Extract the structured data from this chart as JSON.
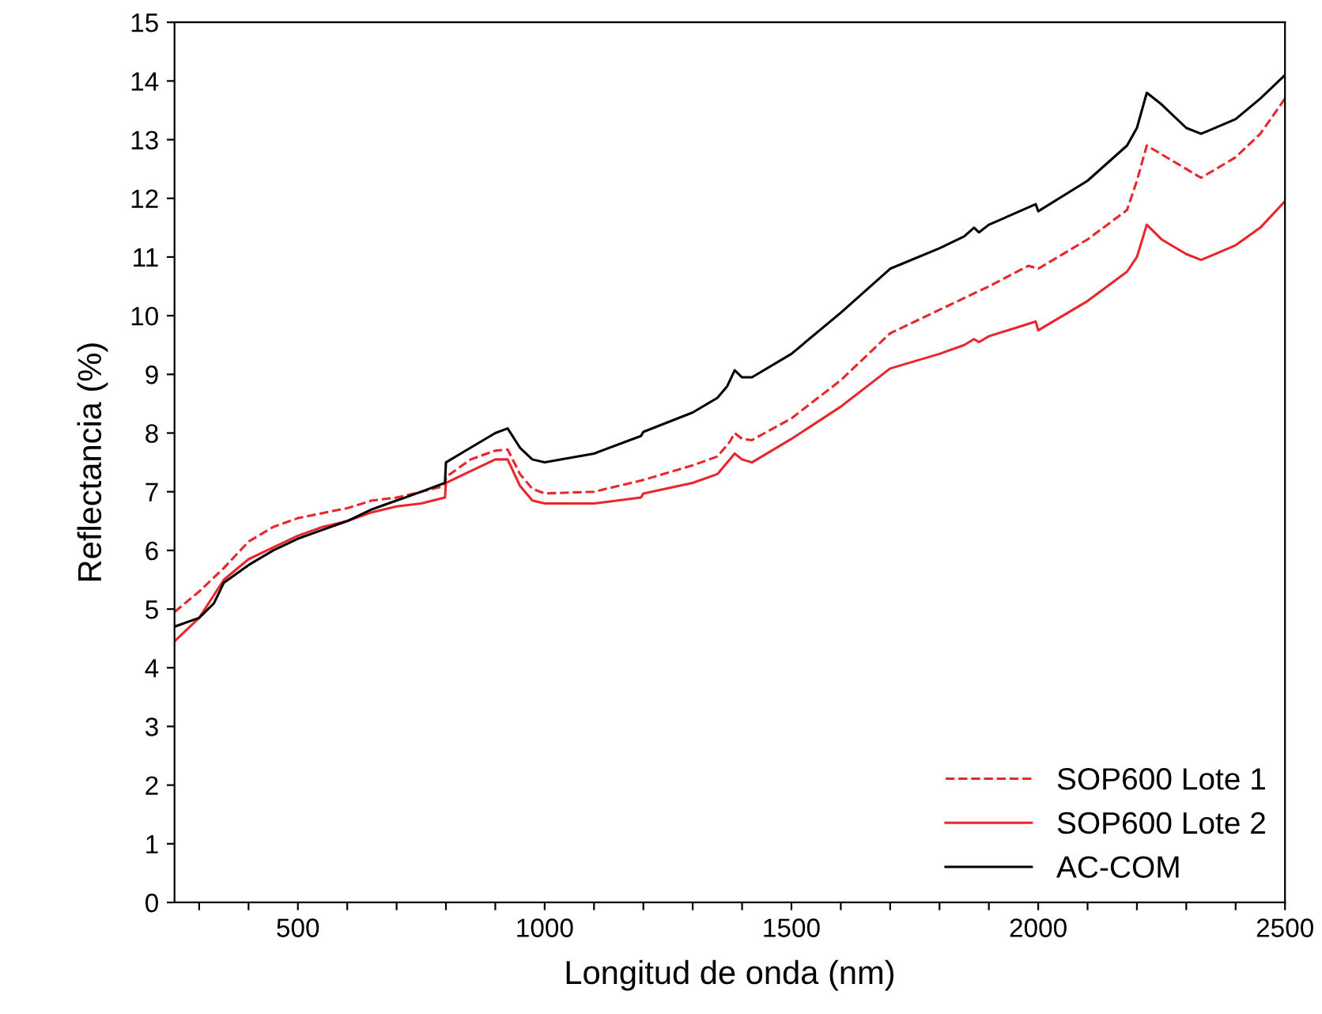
{
  "chart_data": {
    "type": "line",
    "xlabel": "Longitud de onda (nm)",
    "ylabel": "Reflectancia (%)",
    "xlim": [
      250,
      2500
    ],
    "ylim": [
      0,
      15
    ],
    "xticks": [
      {
        "value": 300,
        "label": null
      },
      {
        "value": 400,
        "label": null
      },
      500,
      {
        "value": 600,
        "label": null
      },
      {
        "value": 700,
        "label": null
      },
      {
        "value": 800,
        "label": null
      },
      {
        "value": 900,
        "label": null
      },
      1000,
      {
        "value": 1100,
        "label": null
      },
      {
        "value": 1200,
        "label": null
      },
      {
        "value": 1300,
        "label": null
      },
      {
        "value": 1400,
        "label": null
      },
      1500,
      {
        "value": 1600,
        "label": null
      },
      {
        "value": 1700,
        "label": null
      },
      {
        "value": 1800,
        "label": null
      },
      {
        "value": 1900,
        "label": null
      },
      2000,
      {
        "value": 2100,
        "label": null
      },
      {
        "value": 2200,
        "label": null
      },
      {
        "value": 2300,
        "label": null
      },
      {
        "value": 2400,
        "label": null
      },
      2500
    ],
    "yticks": [
      0,
      1,
      2,
      3,
      4,
      5,
      6,
      7,
      8,
      9,
      10,
      11,
      12,
      13,
      14,
      15
    ],
    "grid": false,
    "legend": "bottom right",
    "marker": "none",
    "series": [
      {
        "name": "SOP600 Lote 1",
        "color": "#e8262b",
        "line_style": "dashed",
        "x": [
          250,
          300,
          350,
          400,
          450,
          500,
          600,
          650,
          700,
          750,
          798,
          800,
          850,
          900,
          925,
          950,
          975,
          1000,
          1100,
          1200,
          1300,
          1350,
          1375,
          1385,
          1400,
          1420,
          1500,
          1600,
          1700,
          1800,
          1900,
          1980,
          2000,
          2100,
          2180,
          2200,
          2220,
          2250,
          2300,
          2330,
          2400,
          2450,
          2500
        ],
        "values": [
          4.95,
          5.3,
          5.7,
          6.15,
          6.4,
          6.55,
          6.72,
          6.85,
          6.9,
          7.0,
          7.1,
          7.25,
          7.55,
          7.7,
          7.72,
          7.3,
          7.05,
          6.97,
          7.0,
          7.2,
          7.45,
          7.6,
          7.85,
          8.0,
          7.9,
          7.88,
          8.25,
          8.9,
          9.7,
          10.1,
          10.5,
          10.85,
          10.8,
          11.3,
          11.8,
          12.3,
          12.9,
          12.75,
          12.5,
          12.35,
          12.7,
          13.1,
          13.7
        ]
      },
      {
        "name": "SOP600 Lote 2",
        "color": "#e8262b",
        "line_style": "solid",
        "x": [
          250,
          300,
          350,
          400,
          450,
          500,
          550,
          600,
          650,
          700,
          750,
          798,
          800,
          850,
          900,
          925,
          950,
          975,
          1000,
          1100,
          1195,
          1200,
          1300,
          1350,
          1385,
          1400,
          1420,
          1500,
          1600,
          1700,
          1800,
          1850,
          1870,
          1880,
          1900,
          1995,
          2000,
          2100,
          2180,
          2200,
          2220,
          2250,
          2300,
          2330,
          2400,
          2450,
          2500
        ],
        "values": [
          4.45,
          4.85,
          5.5,
          5.85,
          6.05,
          6.25,
          6.4,
          6.5,
          6.65,
          6.75,
          6.8,
          6.9,
          7.15,
          7.35,
          7.55,
          7.55,
          7.1,
          6.85,
          6.8,
          6.8,
          6.9,
          6.97,
          7.15,
          7.3,
          7.65,
          7.55,
          7.5,
          7.9,
          8.45,
          9.1,
          9.35,
          9.5,
          9.6,
          9.55,
          9.65,
          9.9,
          9.75,
          10.25,
          10.75,
          11.0,
          11.55,
          11.3,
          11.05,
          10.95,
          11.2,
          11.5,
          11.95
        ]
      },
      {
        "name": "AC-COM",
        "color": "#000000",
        "line_style": "solid",
        "x": [
          250,
          300,
          330,
          350,
          400,
          450,
          500,
          550,
          600,
          650,
          700,
          750,
          798,
          800,
          850,
          900,
          925,
          950,
          975,
          1000,
          1100,
          1195,
          1200,
          1300,
          1350,
          1370,
          1385,
          1400,
          1420,
          1500,
          1600,
          1700,
          1800,
          1850,
          1870,
          1880,
          1900,
          1995,
          2000,
          2100,
          2180,
          2200,
          2220,
          2250,
          2300,
          2330,
          2400,
          2450,
          2500
        ],
        "values": [
          4.7,
          4.85,
          5.1,
          5.45,
          5.75,
          6.0,
          6.2,
          6.35,
          6.5,
          6.7,
          6.85,
          7.0,
          7.15,
          7.5,
          7.75,
          8.0,
          8.08,
          7.75,
          7.55,
          7.5,
          7.65,
          7.95,
          8.02,
          8.35,
          8.6,
          8.8,
          9.07,
          8.95,
          8.95,
          9.35,
          10.05,
          10.8,
          11.15,
          11.35,
          11.5,
          11.42,
          11.55,
          11.9,
          11.78,
          12.3,
          12.9,
          13.2,
          13.8,
          13.6,
          13.2,
          13.1,
          13.35,
          13.7,
          14.1
        ]
      }
    ]
  }
}
